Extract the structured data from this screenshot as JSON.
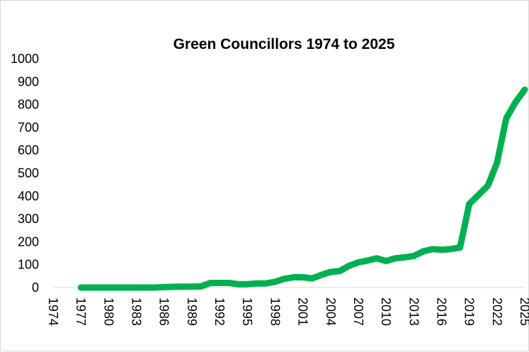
{
  "chart_data": {
    "type": "line",
    "title": "Green Councillors 1974 to 2025",
    "xlabel": "",
    "ylabel": "",
    "ylim": [
      0,
      1000
    ],
    "yticks": [
      0,
      100,
      200,
      300,
      400,
      500,
      600,
      700,
      800,
      900,
      1000
    ],
    "xticks": [
      1974,
      1977,
      1980,
      1983,
      1986,
      1989,
      1992,
      1995,
      1998,
      2001,
      2004,
      2007,
      2010,
      2013,
      2016,
      2019,
      2022,
      2025
    ],
    "grid": false,
    "legend": "none",
    "series": [
      {
        "name": "Green Councillors",
        "color": "#00b050",
        "x": [
          1977,
          1978,
          1979,
          1980,
          1981,
          1982,
          1983,
          1984,
          1985,
          1986,
          1987,
          1988,
          1989,
          1990,
          1991,
          1992,
          1993,
          1994,
          1995,
          1996,
          1997,
          1998,
          1999,
          2000,
          2001,
          2002,
          2003,
          2004,
          2005,
          2006,
          2007,
          2008,
          2009,
          2010,
          2011,
          2012,
          2013,
          2014,
          2015,
          2016,
          2017,
          2018,
          2019,
          2020,
          2021,
          2022,
          2023,
          2024,
          2025
        ],
        "values": [
          0,
          0,
          0,
          0,
          0,
          0,
          0,
          0,
          0,
          2,
          3,
          4,
          4,
          5,
          20,
          20,
          20,
          15,
          15,
          18,
          18,
          25,
          38,
          45,
          45,
          40,
          55,
          68,
          72,
          95,
          110,
          118,
          128,
          116,
          128,
          132,
          138,
          158,
          168,
          165,
          168,
          175,
          365,
          405,
          445,
          545,
          740,
          810,
          865
        ]
      }
    ]
  }
}
